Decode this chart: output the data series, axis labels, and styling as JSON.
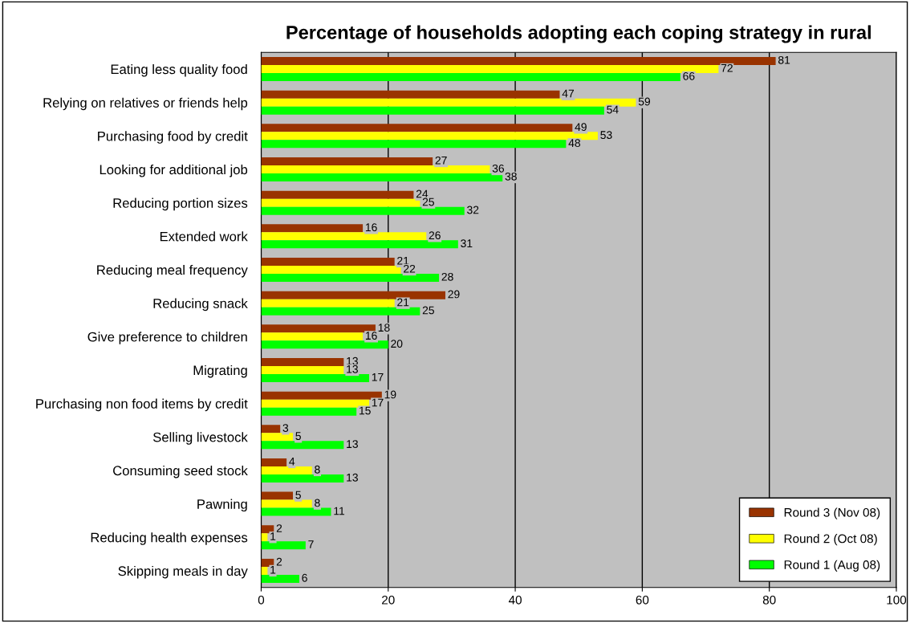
{
  "chart_data": {
    "type": "bar",
    "orientation": "horizontal",
    "title": "Percentage of households adopting each coping strategy in rural",
    "categories": [
      "Eating less quality food",
      "Relying on relatives or friends help",
      "Purchasing food by credit",
      "Looking for additional job",
      "Reducing portion sizes",
      "Extended work",
      "Reducing meal frequency",
      "Reducing snack",
      "Give preference to children",
      "Migrating",
      "Purchasing non food items by credit",
      "Selling livestock",
      "Consuming seed stock",
      "Pawning",
      "Reducing health expenses",
      "Skipping meals in day"
    ],
    "series": [
      {
        "name": "Round 3 (Nov 08)",
        "color": "#993300",
        "values": [
          81,
          47,
          49,
          27,
          24,
          16,
          21,
          29,
          18,
          13,
          19,
          3,
          4,
          5,
          2,
          2
        ]
      },
      {
        "name": "Round 2 (Oct 08)",
        "color": "#ffff00",
        "values": [
          72,
          59,
          53,
          36,
          25,
          26,
          22,
          21,
          16,
          13,
          17,
          5,
          8,
          8,
          1,
          1
        ]
      },
      {
        "name": "Round 1 (Aug 08)",
        "color": "#00ff00",
        "values": [
          66,
          54,
          48,
          38,
          32,
          31,
          28,
          25,
          20,
          17,
          15,
          13,
          13,
          11,
          7,
          6
        ]
      }
    ],
    "xlim": [
      0,
      100
    ],
    "xticks": [
      0,
      20,
      40,
      60,
      80,
      100
    ],
    "grid": "x",
    "legend": "bottom right",
    "data_labels": true
  }
}
